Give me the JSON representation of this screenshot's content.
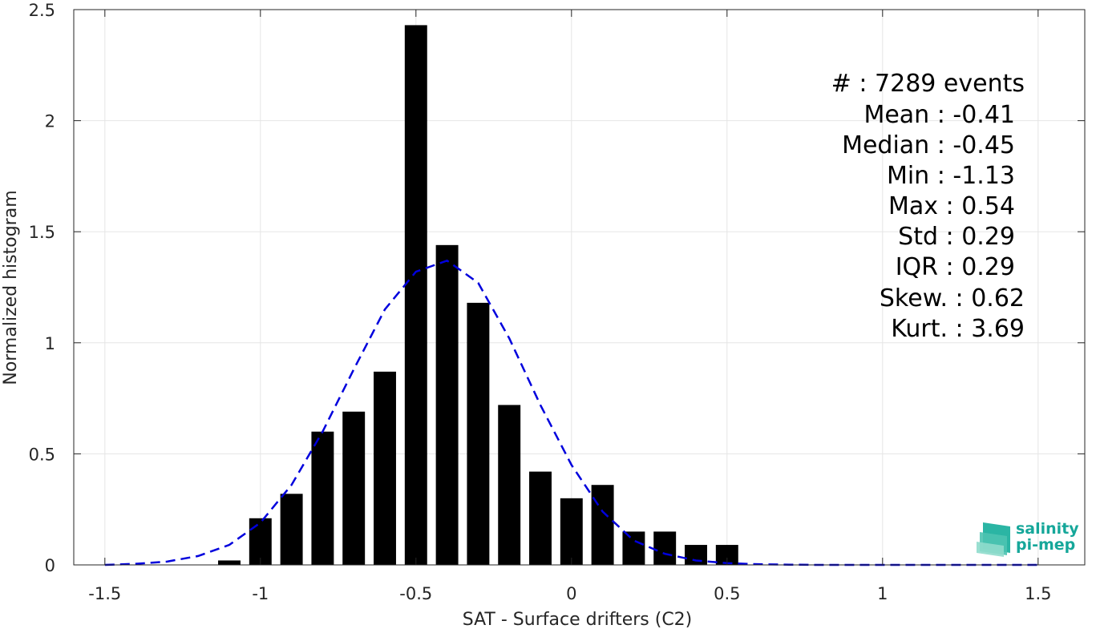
{
  "chart_data": {
    "type": "bar",
    "xlabel": "SAT - Surface drifters (C2)",
    "ylabel": "Normalized histogram",
    "xlim": [
      -1.6,
      1.65
    ],
    "ylim": [
      0,
      2.5
    ],
    "xticks": [
      -1.5,
      -1,
      -0.5,
      0,
      0.5,
      1,
      1.5
    ],
    "xtick_labels": [
      "-1.5",
      "-1",
      "-0.5",
      "0",
      "0.5",
      "1",
      "1.5"
    ],
    "yticks": [
      0,
      0.5,
      1,
      1.5,
      2,
      2.5
    ],
    "ytick_labels": [
      "0",
      "0.5",
      "1",
      "1.5",
      "2",
      "2.5"
    ],
    "grid": true,
    "bar_color": "#000000",
    "bars": {
      "x": [
        -1.1,
        -1.0,
        -0.9,
        -0.8,
        -0.7,
        -0.6,
        -0.5,
        -0.4,
        -0.3,
        -0.2,
        -0.1,
        0.0,
        0.1,
        0.2,
        0.3,
        0.4,
        0.5
      ],
      "values": [
        0.02,
        0.21,
        0.32,
        0.6,
        0.69,
        0.87,
        2.43,
        1.44,
        1.18,
        0.72,
        0.42,
        0.3,
        0.36,
        0.15,
        0.15,
        0.09,
        0.09
      ]
    },
    "fit_curve": {
      "style": "dashed",
      "color": "#0000dd",
      "x": [
        -1.5,
        -1.4,
        -1.3,
        -1.2,
        -1.1,
        -1.0,
        -0.9,
        -0.8,
        -0.7,
        -0.6,
        -0.5,
        -0.4,
        -0.3,
        -0.2,
        -0.1,
        0.0,
        0.1,
        0.2,
        0.3,
        0.4,
        0.5,
        0.6,
        0.7,
        0.8,
        0.9,
        1.0,
        1.1,
        1.2,
        1.3,
        1.4,
        1.5
      ],
      "y": [
        0.0,
        0.005,
        0.015,
        0.04,
        0.09,
        0.19,
        0.36,
        0.6,
        0.88,
        1.15,
        1.32,
        1.37,
        1.27,
        1.02,
        0.72,
        0.45,
        0.24,
        0.11,
        0.05,
        0.02,
        0.008,
        0.003,
        0.001,
        0.0,
        0.0,
        0.0,
        0.0,
        0.0,
        0.0,
        0.0,
        0.0
      ]
    },
    "annotations": [
      "#  : 7289 events",
      "Mean : -0.41",
      "Median : -0.45",
      "Min : -1.13",
      "Max : 0.54",
      "Std : 0.29",
      "IQR : 0.29",
      "Skew. : 0.62",
      "Kurt. : 3.69"
    ]
  },
  "logo": {
    "line1": "salinity",
    "line2": "pi-mep",
    "color": "#16a79a"
  }
}
